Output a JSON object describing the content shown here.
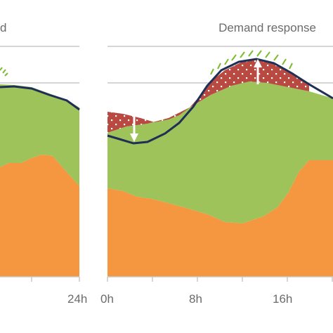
{
  "chart_data": [
    {
      "type": "area",
      "panel": "left (partial)",
      "title": "d",
      "x_ticks": [
        "24h"
      ],
      "colors": {
        "solar": "#9dc35a",
        "base": "#f59640",
        "demand_line": "#1f2f55"
      },
      "series": [
        {
          "name": "",
          "kind": "stacked-area-base",
          "x": [
            0,
            2,
            4,
            6,
            8,
            10,
            12,
            14,
            16,
            18,
            20,
            22,
            24
          ],
          "values": [
            52,
            58,
            56,
            55,
            54,
            55,
            57,
            58,
            56,
            53,
            50,
            46,
            41
          ]
        },
        {
          "name": "",
          "kind": "stacked-area-top",
          "x": [
            0,
            2,
            4,
            6,
            8,
            10,
            12,
            14,
            16,
            18,
            20,
            22,
            24
          ],
          "values": [
            90,
            90,
            90,
            90,
            91,
            91,
            90,
            89,
            88,
            87,
            86,
            85,
            84
          ]
        },
        {
          "name": "",
          "kind": "line",
          "x": [
            0,
            2,
            4,
            6,
            8,
            10,
            12,
            14,
            16,
            18,
            20,
            22,
            24
          ],
          "values": [
            90,
            90,
            90,
            90,
            91,
            91,
            90,
            89,
            88,
            87,
            86,
            85,
            84
          ]
        }
      ]
    },
    {
      "type": "area",
      "panel": "right",
      "title": "Demand response",
      "x_ticks": [
        "0h",
        "8h",
        "16h"
      ],
      "colors": {
        "solar": "#9dc35a",
        "base": "#f59640",
        "demand_line": "#1f2f55",
        "shift": "#b84a42",
        "arrow": "#ffffff"
      },
      "series": [
        {
          "name": "",
          "kind": "stacked-area-base",
          "x": [
            0,
            2,
            4,
            6,
            8,
            10,
            12,
            14,
            16,
            17,
            18,
            20,
            22,
            24
          ],
          "values": [
            48,
            47,
            45,
            43,
            40,
            38,
            38,
            42,
            52,
            60,
            67,
            72,
            72,
            71
          ]
        },
        {
          "name": "",
          "kind": "stacked-area-top",
          "x": [
            0,
            2,
            4,
            6,
            8,
            10,
            12,
            14,
            16,
            18,
            20,
            22,
            24
          ],
          "values": [
            80,
            78,
            79,
            82,
            86,
            91,
            94,
            94,
            92,
            90,
            88,
            86,
            84
          ]
        },
        {
          "name": "",
          "kind": "line",
          "x": [
            0,
            2,
            4,
            6,
            8,
            10,
            12,
            14,
            16,
            18,
            20,
            22,
            24
          ],
          "values": [
            80,
            77,
            79,
            84,
            90,
            95,
            98,
            98,
            96,
            93,
            90,
            87,
            84
          ]
        }
      ],
      "shifted_load": {
        "down_arrow_at": 2,
        "up_arrow_at": 13
      }
    }
  ]
}
